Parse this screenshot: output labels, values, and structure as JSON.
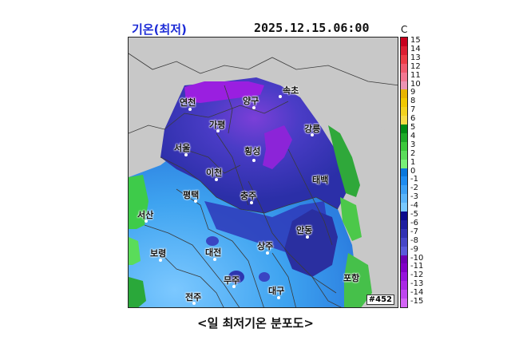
{
  "header": {
    "title": "기온(최저)",
    "timestamp": "2025.12.15.06:00",
    "unit": "C"
  },
  "map": {
    "station_count_label": "#452",
    "places": [
      {
        "name": "속초"
      },
      {
        "name": "양구"
      },
      {
        "name": "연천"
      },
      {
        "name": "가평"
      },
      {
        "name": "강릉"
      },
      {
        "name": "서울"
      },
      {
        "name": "횡성"
      },
      {
        "name": "이천"
      },
      {
        "name": "태백"
      },
      {
        "name": "평택"
      },
      {
        "name": "충주"
      },
      {
        "name": "서산"
      },
      {
        "name": "안동"
      },
      {
        "name": "상주"
      },
      {
        "name": "보령"
      },
      {
        "name": "대전"
      },
      {
        "name": "무주"
      },
      {
        "name": "포항"
      },
      {
        "name": "대구"
      },
      {
        "name": "전주"
      }
    ]
  },
  "legend": {
    "levels": [
      "15",
      "14",
      "13",
      "12",
      "11",
      "10",
      "9",
      "8",
      "7",
      "6",
      "5",
      "4",
      "3",
      "2",
      "1",
      "0",
      "-1",
      "-2",
      "-3",
      "-4",
      "-5",
      "-6",
      "-7",
      "-8",
      "-9",
      "-10",
      "-11",
      "-12",
      "-13",
      "-14",
      "-15"
    ],
    "colors": [
      "#c8001e",
      "#dc1e32",
      "#ec3c46",
      "#f05a6e",
      "#f27892",
      "#ec94b4",
      "#e8b400",
      "#f0c800",
      "#f2d21e",
      "#f5dc46",
      "#008c14",
      "#1eaa28",
      "#3cc83c",
      "#5adc5a",
      "#78f078",
      "#0a78dc",
      "#1e8cf0",
      "#3ca0f5",
      "#5ab4fa",
      "#78c8ff",
      "#0a0a8c",
      "#1e1ea0",
      "#3232b4",
      "#4646c8",
      "#5a5adc",
      "#6e00b4",
      "#8200c8",
      "#9614dc",
      "#aa28e6",
      "#be46f0",
      "#d264f5"
    ]
  },
  "caption": "<일 최저기온 분포도>"
}
